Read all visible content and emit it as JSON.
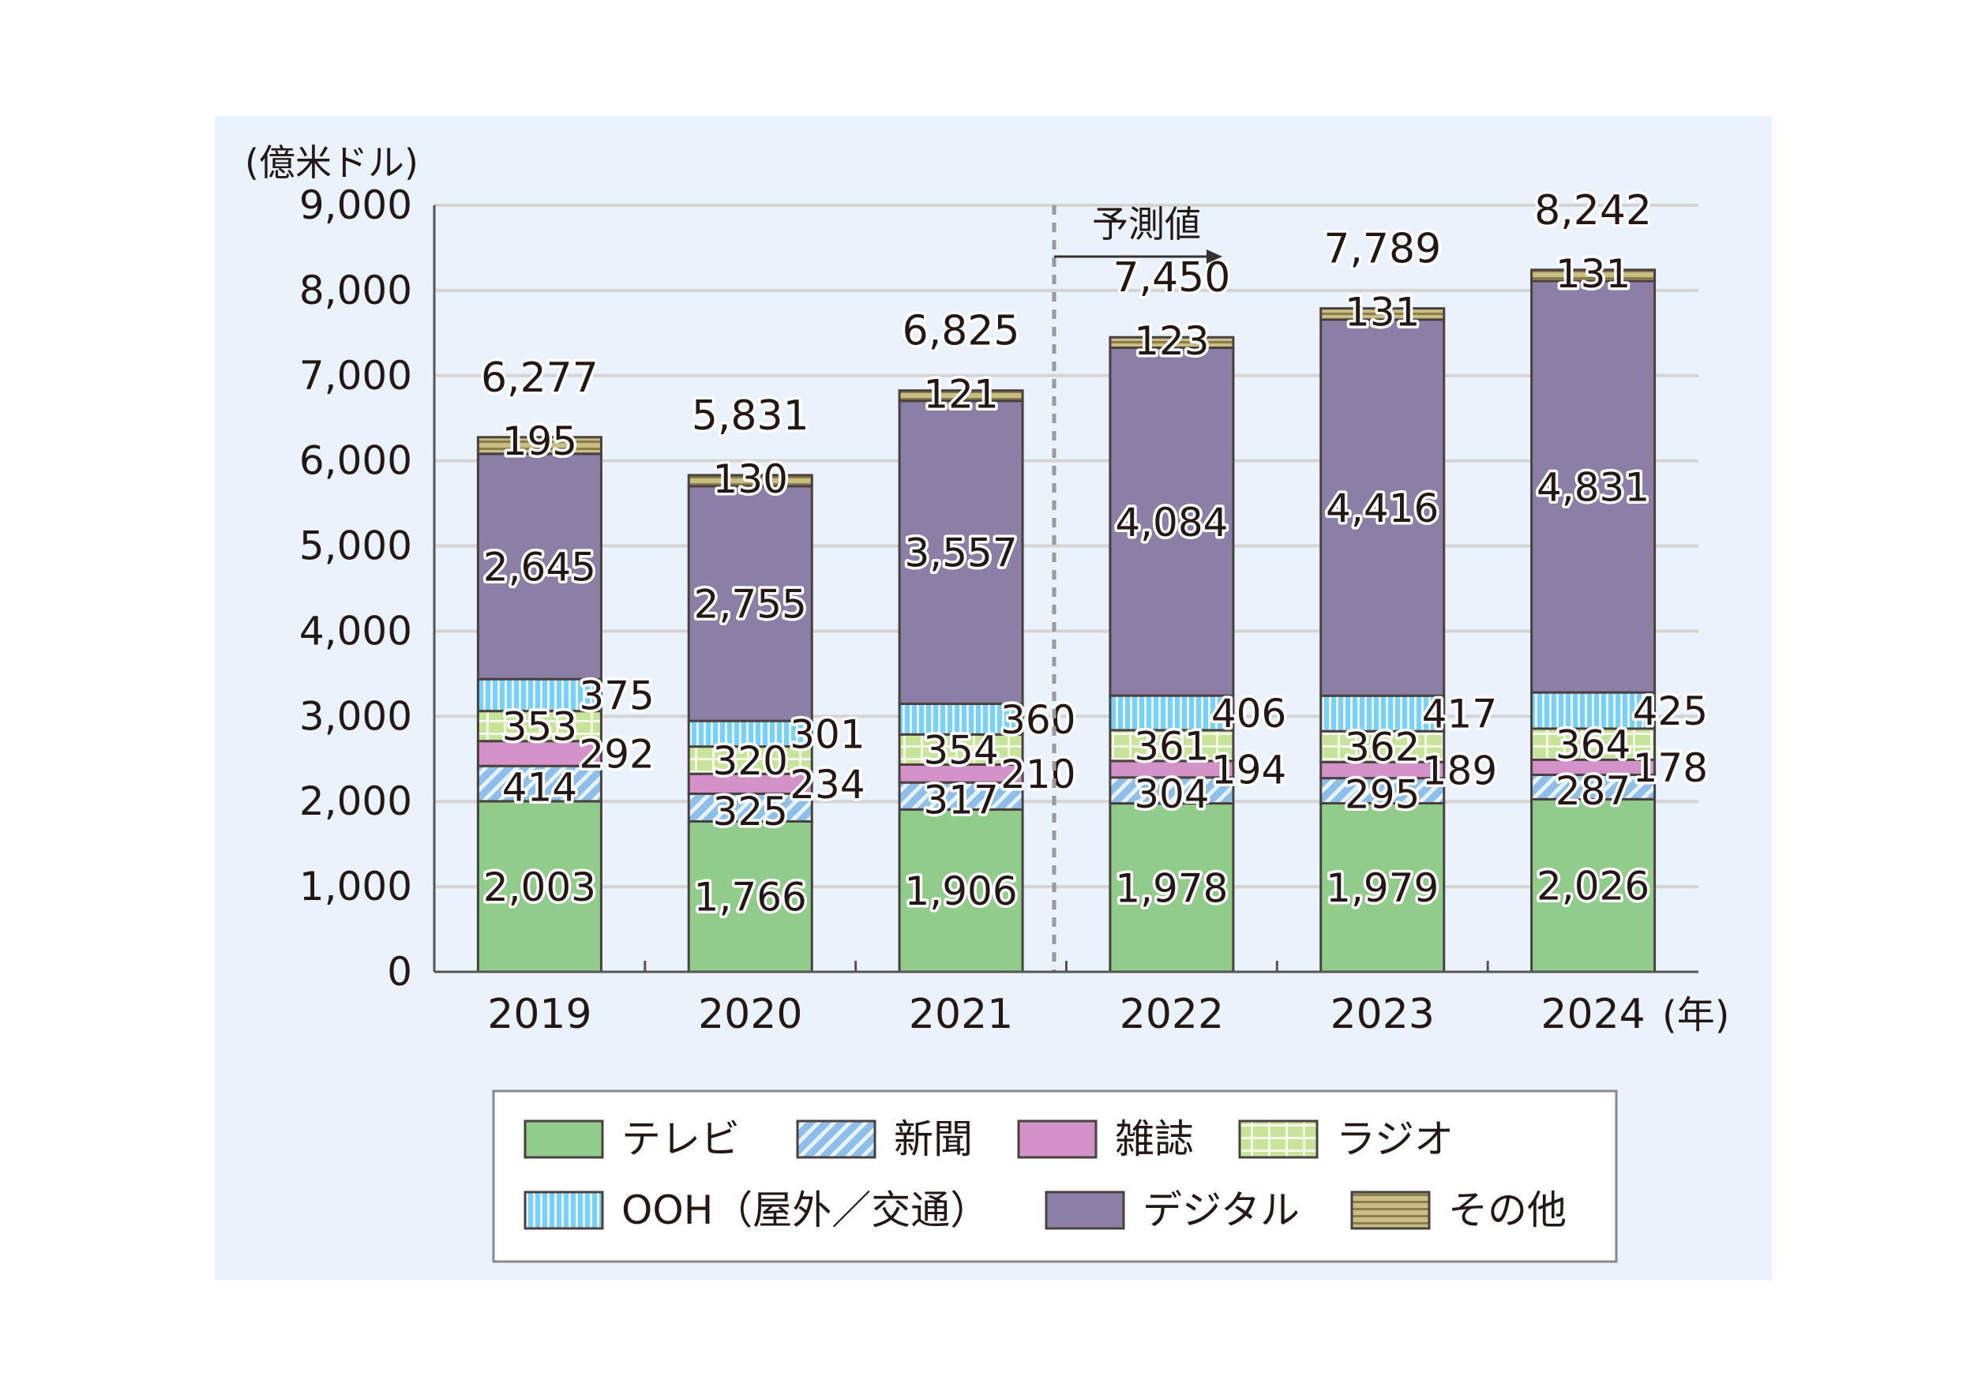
{
  "chart_data": {
    "type": "bar",
    "stacked": true,
    "unit_label": "(億米ドル)",
    "x_unit_label": "(年)",
    "forecast_label": "予測値",
    "forecast_from": "2022",
    "categories": [
      "2019",
      "2020",
      "2021",
      "2022",
      "2023",
      "2024"
    ],
    "ylim": [
      0,
      9000
    ],
    "yticks": [
      0,
      1000,
      2000,
      3000,
      4000,
      5000,
      6000,
      7000,
      8000,
      9000
    ],
    "ytick_labels": [
      "0",
      "1,000",
      "2,000",
      "3,000",
      "4,000",
      "5,000",
      "6,000",
      "7,000",
      "8,000",
      "9,000"
    ],
    "grid": true,
    "legend_position": "bottom",
    "series": [
      {
        "name": "テレビ",
        "color": "#92cc8a",
        "pattern": "solid",
        "values": [
          2003,
          1766,
          1906,
          1978,
          1979,
          2026
        ],
        "labels": [
          "2,003",
          "1,766",
          "1,906",
          "1,978",
          "1,979",
          "2,026"
        ]
      },
      {
        "name": "新聞",
        "color": "#8fbfe8",
        "pattern": "diagonal",
        "values": [
          414,
          325,
          317,
          304,
          295,
          287
        ],
        "labels": [
          "414",
          "325",
          "317",
          "304",
          "295",
          "287"
        ]
      },
      {
        "name": "雑誌",
        "color": "#d493c8",
        "pattern": "solid",
        "values": [
          292,
          234,
          210,
          194,
          189,
          178
        ],
        "labels": [
          "292",
          "234",
          "210",
          "194",
          "189",
          "178"
        ]
      },
      {
        "name": "ラジオ",
        "color": "#c8e39a",
        "pattern": "grid",
        "values": [
          353,
          320,
          354,
          361,
          362,
          364
        ],
        "labels": [
          "353",
          "320",
          "354",
          "361",
          "362",
          "364"
        ]
      },
      {
        "name": "OOH（屋外／交通）",
        "color": "#7dd0f5",
        "pattern": "vertical",
        "values": [
          375,
          301,
          360,
          406,
          417,
          425
        ],
        "labels": [
          "375",
          "301",
          "360",
          "406",
          "417",
          "425"
        ]
      },
      {
        "name": "デジタル",
        "color": "#8b7fa6",
        "pattern": "solid",
        "values": [
          2645,
          2755,
          3557,
          4084,
          4416,
          4831
        ],
        "labels": [
          "2,645",
          "2,755",
          "3,557",
          "4,084",
          "4,416",
          "4,831"
        ]
      },
      {
        "name": "その他",
        "color": "#c9bd86",
        "pattern": "horizontal",
        "values": [
          195,
          130,
          121,
          123,
          131,
          131
        ],
        "labels": [
          "195",
          "130",
          "121",
          "123",
          "131",
          "131"
        ]
      }
    ],
    "totals": [
      6277,
      5831,
      6825,
      7450,
      7789,
      8242
    ],
    "total_labels": [
      "6,277",
      "5,831",
      "6,825",
      "7,450",
      "7,789",
      "8,242"
    ]
  }
}
